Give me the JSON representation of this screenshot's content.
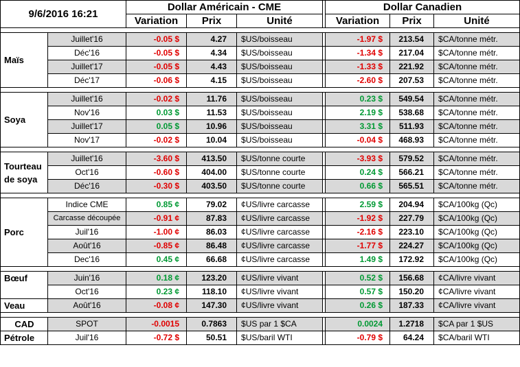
{
  "header": {
    "date": "9/6/2016 16:21",
    "usd_group": "Dollar Américain - CME",
    "cad_group": "Dollar Canadien",
    "col_variation": "Variation",
    "col_prix": "Prix",
    "col_unite": "Unité"
  },
  "groups": [
    {
      "product": "Maïs",
      "rows": [
        {
          "contract": "Juillet'16",
          "usd_var": "-0.05 $",
          "usd_price": "4.27",
          "usd_unit": "$US/boisseau",
          "cad_var": "-1.97 $",
          "cad_price": "213.54",
          "cad_unit": "$CA/tonne métr."
        },
        {
          "contract": "Déc'16",
          "usd_var": "-0.05 $",
          "usd_price": "4.34",
          "usd_unit": "$US/boisseau",
          "cad_var": "-1.34 $",
          "cad_price": "217.04",
          "cad_unit": "$CA/tonne métr."
        },
        {
          "contract": "Juillet'17",
          "usd_var": "-0.05 $",
          "usd_price": "4.43",
          "usd_unit": "$US/boisseau",
          "cad_var": "-1.33 $",
          "cad_price": "221.92",
          "cad_unit": "$CA/tonne métr."
        },
        {
          "contract": "Déc'17",
          "usd_var": "-0.06 $",
          "usd_price": "4.15",
          "usd_unit": "$US/boisseau",
          "cad_var": "-2.60 $",
          "cad_price": "207.53",
          "cad_unit": "$CA/tonne métr."
        }
      ]
    },
    {
      "product": "Soya",
      "rows": [
        {
          "contract": "Juillet'16",
          "usd_var": "-0.02 $",
          "usd_price": "11.76",
          "usd_unit": "$US/boisseau",
          "cad_var": "0.23 $",
          "cad_price": "549.54",
          "cad_unit": "$CA/tonne métr."
        },
        {
          "contract": "Nov'16",
          "usd_var": "0.03 $",
          "usd_price": "11.53",
          "usd_unit": "$US/boisseau",
          "cad_var": "2.19 $",
          "cad_price": "538.68",
          "cad_unit": "$CA/tonne métr."
        },
        {
          "contract": "Juillet'17",
          "usd_var": "0.05 $",
          "usd_price": "10.96",
          "usd_unit": "$US/boisseau",
          "cad_var": "3.31 $",
          "cad_price": "511.93",
          "cad_unit": "$CA/tonne métr."
        },
        {
          "contract": "Nov'17",
          "usd_var": "-0.02 $",
          "usd_price": "10.04",
          "usd_unit": "$US/boisseau",
          "cad_var": "-0.04 $",
          "cad_price": "468.93",
          "cad_unit": "$CA/tonne métr."
        }
      ]
    },
    {
      "product": "Tourteau de soya",
      "rows": [
        {
          "contract": "Juillet'16",
          "usd_var": "-3.60 $",
          "usd_price": "413.50",
          "usd_unit": "$US/tonne courte",
          "cad_var": "-3.93 $",
          "cad_price": "579.52",
          "cad_unit": "$CA/tonne métr."
        },
        {
          "contract": "Oct'16",
          "usd_var": "-0.60 $",
          "usd_price": "404.00",
          "usd_unit": "$US/tonne courte",
          "cad_var": "0.24 $",
          "cad_price": "566.21",
          "cad_unit": "$CA/tonne métr."
        },
        {
          "contract": "Déc'16",
          "usd_var": "-0.30 $",
          "usd_price": "403.50",
          "usd_unit": "$US/tonne courte",
          "cad_var": "0.66 $",
          "cad_price": "565.51",
          "cad_unit": "$CA/tonne métr."
        }
      ]
    },
    {
      "product": "Porc",
      "rows": [
        {
          "contract": "Indice CME",
          "usd_var": "0.85 ¢",
          "usd_price": "79.02",
          "usd_unit": "¢US/livre carcasse",
          "cad_var": "2.59 $",
          "cad_price": "204.94",
          "cad_unit": "$CA/100kg (Qc)"
        },
        {
          "contract": "Carcasse découpée",
          "usd_var": "-0.91 ¢",
          "usd_price": "87.83",
          "usd_unit": "¢US/livre carcasse",
          "cad_var": "-1.92 $",
          "cad_price": "227.79",
          "cad_unit": "$CA/100kg (Qc)"
        },
        {
          "contract": "Juil'16",
          "usd_var": "-1.00 ¢",
          "usd_price": "86.03",
          "usd_unit": "¢US/livre carcasse",
          "cad_var": "-2.16 $",
          "cad_price": "223.10",
          "cad_unit": "$CA/100kg (Qc)"
        },
        {
          "contract": "Août'16",
          "usd_var": "-0.85 ¢",
          "usd_price": "86.48",
          "usd_unit": "¢US/livre carcasse",
          "cad_var": "-1.77 $",
          "cad_price": "224.27",
          "cad_unit": "$CA/100kg (Qc)"
        },
        {
          "contract": "Dec'16",
          "usd_var": "0.45 ¢",
          "usd_price": "66.68",
          "usd_unit": "¢US/livre carcasse",
          "cad_var": "1.49 $",
          "cad_price": "172.92",
          "cad_unit": "$CA/100kg (Qc)"
        }
      ]
    },
    {
      "product": "Bœuf",
      "product2": "Veau",
      "rows": [
        {
          "contract": "Juin'16",
          "usd_var": "0.18 ¢",
          "usd_price": "123.20",
          "usd_unit": "¢US/livre vivant",
          "cad_var": "0.52 $",
          "cad_price": "156.68",
          "cad_unit": "¢CA/livre vivant"
        },
        {
          "contract": "Oct'16",
          "usd_var": "0.23 ¢",
          "usd_price": "118.10",
          "usd_unit": "¢US/livre vivant",
          "cad_var": "0.57 $",
          "cad_price": "150.20",
          "cad_unit": "¢CA/livre vivant"
        },
        {
          "contract": "Août'16",
          "usd_var": "-0.08 ¢",
          "usd_price": "147.30",
          "usd_unit": "¢US/livre vivant",
          "cad_var": "0.26 $",
          "cad_price": "187.33",
          "cad_unit": "¢CA/livre vivant"
        }
      ]
    },
    {
      "product": "CAD",
      "product2": "Pétrole",
      "rows": [
        {
          "contract": "SPOT",
          "usd_var": "-0.0015",
          "usd_price": "0.7863",
          "usd_unit": "$US par 1 $CA",
          "cad_var": "0.0024",
          "cad_price": "1.2718",
          "cad_unit": "$CA par 1 $US"
        },
        {
          "contract": "Juil'16",
          "usd_var": "-0.72 $",
          "usd_price": "50.51",
          "usd_unit": "$US/baril WTI",
          "cad_var": "-0.79 $",
          "cad_price": "64.24",
          "cad_unit": "$CA/baril WTI"
        }
      ]
    }
  ],
  "colors": {
    "negative": "#e00000",
    "positive": "#009933",
    "row_shade": "#d9d9d9"
  }
}
